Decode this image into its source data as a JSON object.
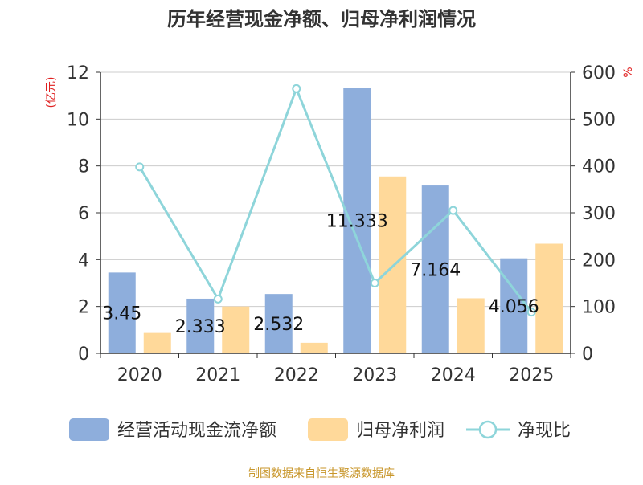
{
  "chart_data": {
    "type": "bar",
    "title": "历年经营现金净额、归母净利润情况",
    "left_axis_unit": "(亿元)",
    "right_axis_unit": "%",
    "categories": [
      "2020",
      "2021",
      "2022",
      "2023",
      "2024",
      "2025"
    ],
    "ylim_left": [
      0,
      12
    ],
    "yticks_left": [
      0,
      2,
      4,
      6,
      8,
      10,
      12
    ],
    "ylim_right": [
      0,
      600
    ],
    "yticks_right": [
      0,
      100,
      200,
      300,
      400,
      500,
      600
    ],
    "grid": true,
    "legend_position": "bottom",
    "series": [
      {
        "name": "经营活动现金流净额",
        "type": "bar",
        "axis": "left",
        "color": "#8eaedc",
        "values": [
          3.45,
          2.333,
          2.532,
          11.333,
          7.164,
          4.056
        ],
        "labels": [
          "3.45",
          "2.333",
          "2.532",
          "11.333",
          "7.164",
          "4.056"
        ]
      },
      {
        "name": "归母净利润",
        "type": "bar",
        "axis": "left",
        "color": "#ffd99a",
        "values": [
          0.87,
          2.0,
          0.45,
          7.55,
          2.35,
          4.68
        ]
      },
      {
        "name": "净现比",
        "type": "line",
        "axis": "right",
        "color": "#8ed5da",
        "values": [
          398,
          116,
          565,
          150,
          305,
          88
        ]
      }
    ],
    "source": "制图数据来自恒生聚源数据库"
  }
}
